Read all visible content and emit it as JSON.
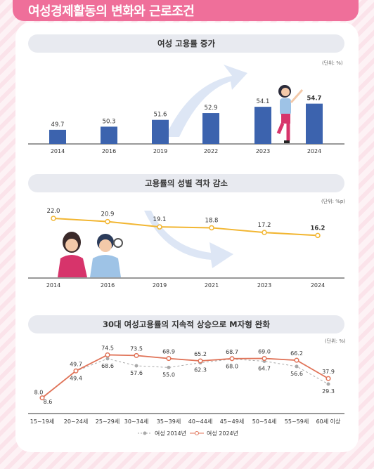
{
  "page_title": "여성경제활동의 변화와 근로조건",
  "colors": {
    "banner": "#ef6f9a",
    "bar": "#3c63ae",
    "gap_line": "#f2b632",
    "w2014": "#a9a9a9",
    "w2024": "#e07358"
  },
  "chart_data": [
    {
      "type": "bar",
      "title": "여성 고용률 증가",
      "unit": "(단위: %)",
      "categories": [
        "2014",
        "2016",
        "2019",
        "2022",
        "2023",
        "2024"
      ],
      "values": [
        49.7,
        50.3,
        51.6,
        52.9,
        54.1,
        54.7
      ]
    },
    {
      "type": "line",
      "title": "고용률의 성별 격차 감소",
      "unit": "(단위: %p)",
      "categories": [
        "2014",
        "2016",
        "2019",
        "2021",
        "2023",
        "2024"
      ],
      "values": [
        22.0,
        20.9,
        19.1,
        18.8,
        17.2,
        16.2
      ]
    },
    {
      "type": "line",
      "title": "30대 여성고용률의 지속적 상승으로 M자형 완화",
      "unit": "(단위: %)",
      "categories": [
        "15~19세",
        "20~24세",
        "25~29세",
        "30~34세",
        "35~39세",
        "40~44세",
        "45~49세",
        "50~54세",
        "55~59세",
        "60세 이상"
      ],
      "series": [
        {
          "name": "여성 2014년",
          "values": [
            8.6,
            49.4,
            68.6,
            57.6,
            55.0,
            62.3,
            68.0,
            64.7,
            56.6,
            29.3
          ]
        },
        {
          "name": "여성 2024년",
          "values": [
            8.0,
            49.7,
            74.5,
            73.5,
            68.9,
            65.2,
            68.7,
            69.0,
            66.2,
            37.9
          ]
        }
      ]
    }
  ]
}
